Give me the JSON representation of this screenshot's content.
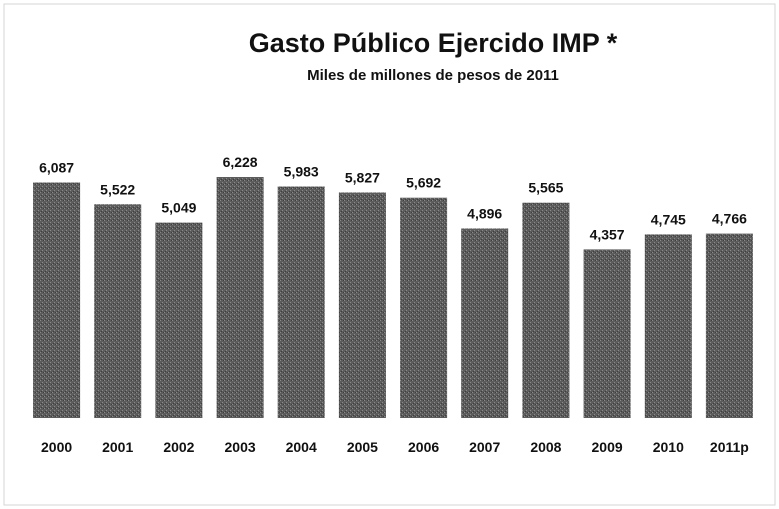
{
  "chart_data": {
    "type": "bar",
    "title": "Gasto Público Ejercido IMP *",
    "subtitle": "Miles de millones de pesos de 2011",
    "categories": [
      "2000",
      "2001",
      "2002",
      "2003",
      "2004",
      "2005",
      "2006",
      "2007",
      "2008",
      "2009",
      "2010",
      "2011p"
    ],
    "values": [
      6087,
      5522,
      5049,
      6228,
      5983,
      5827,
      5692,
      4896,
      5565,
      4357,
      4745,
      4766
    ],
    "value_labels": [
      "6,087",
      "5,522",
      "5,049",
      "6,228",
      "5,983",
      "5,827",
      "5,692",
      "4,896",
      "5,565",
      "4,357",
      "4,745",
      "4,766"
    ],
    "xlabel": "",
    "ylabel": "",
    "ylim": [
      0,
      6500
    ],
    "grid": false,
    "legend": "none",
    "bar_color": "#5a5a5a"
  }
}
